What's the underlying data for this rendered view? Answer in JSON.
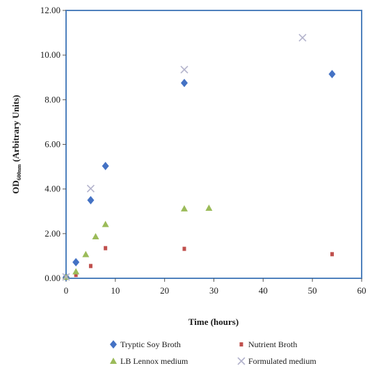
{
  "chart_data": {
    "type": "scatter",
    "xlabel": "Time (hours)",
    "ylabel": {
      "prefix": "OD",
      "subscript": "600nm",
      "suffix": " (Arbitrary Units)"
    },
    "xlim": [
      0,
      60
    ],
    "ylim": [
      0,
      12
    ],
    "xticks": [
      0,
      10,
      20,
      30,
      40,
      50,
      60
    ],
    "xtick_labels": [
      "0",
      "10",
      "20",
      "30",
      "40",
      "50",
      "60"
    ],
    "yticks": [
      0,
      2,
      4,
      6,
      8,
      10,
      12
    ],
    "ytick_labels": [
      "0.00",
      "2.00",
      "4.00",
      "6.00",
      "8.00",
      "10.00",
      "12.00"
    ],
    "grid": false,
    "legend_position": "bottom",
    "series": [
      {
        "name": "Tryptic Soy Broth",
        "marker": "diamond",
        "color": "#4472c4",
        "points": [
          [
            0,
            0.05
          ],
          [
            2,
            0.72
          ],
          [
            5,
            3.5
          ],
          [
            8,
            5.03
          ],
          [
            24,
            8.75
          ],
          [
            54,
            9.15
          ]
        ]
      },
      {
        "name": "Nutrient Broth",
        "marker": "square",
        "color": "#c0504d",
        "points": [
          [
            0,
            0.03
          ],
          [
            2,
            0.15
          ],
          [
            5,
            0.55
          ],
          [
            8,
            1.35
          ],
          [
            24,
            1.32
          ],
          [
            54,
            1.08
          ]
        ]
      },
      {
        "name": "LB Lennox medium",
        "marker": "triangle",
        "color": "#9bbb59",
        "points": [
          [
            0,
            0.05
          ],
          [
            2,
            0.3
          ],
          [
            4,
            1.07
          ],
          [
            6,
            1.87
          ],
          [
            8,
            2.42
          ],
          [
            24,
            3.12
          ],
          [
            29,
            3.15
          ]
        ]
      },
      {
        "name": "Formulated medium",
        "marker": "x",
        "color": "#b3b3cc",
        "points": [
          [
            0,
            0.06
          ],
          [
            5,
            4.02
          ],
          [
            24,
            9.35
          ],
          [
            48,
            10.78
          ]
        ]
      }
    ]
  }
}
